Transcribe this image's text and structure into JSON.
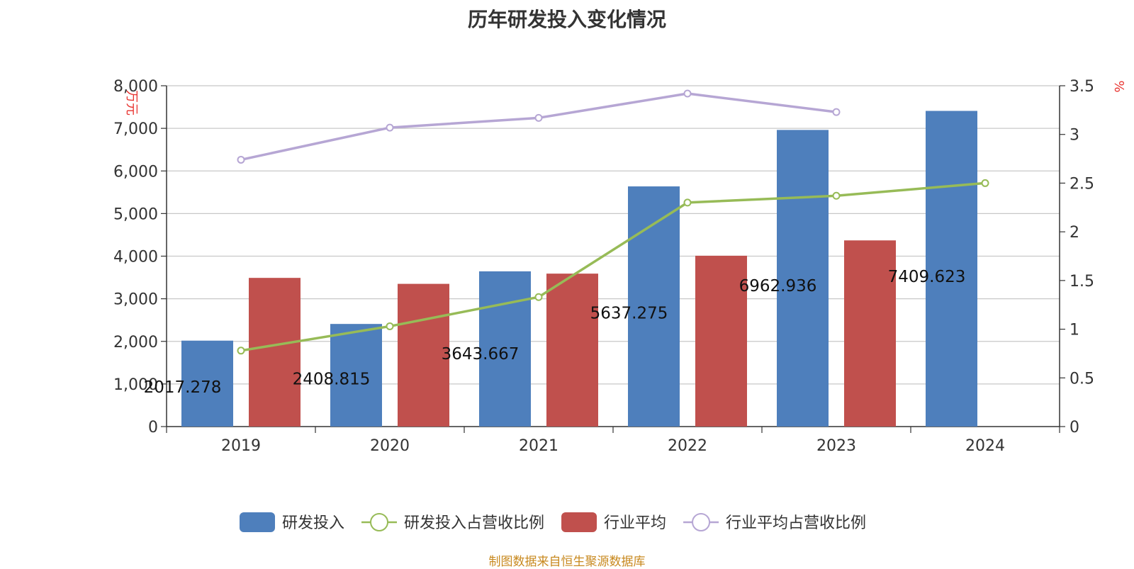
{
  "chart_data": {
    "type": "bar",
    "title": "历年研发投入变化情况",
    "categories": [
      "2019",
      "2020",
      "2021",
      "2022",
      "2023",
      "2024"
    ],
    "y_left": {
      "unit": "万元",
      "ylim": [
        0,
        8000
      ],
      "ticks": [
        0,
        1000,
        2000,
        3000,
        4000,
        5000,
        6000,
        7000,
        8000
      ],
      "tick_labels": [
        "0",
        "1,000",
        "2,000",
        "3,000",
        "4,000",
        "5,000",
        "6,000",
        "7,000",
        "8,000"
      ]
    },
    "y_right": {
      "unit": "%",
      "ylim": [
        0,
        3.5
      ],
      "ticks": [
        0,
        0.5,
        1,
        1.5,
        2,
        2.5,
        3,
        3.5
      ],
      "tick_labels": [
        "0",
        "0.5",
        "1",
        "1.5",
        "2",
        "2.5",
        "3",
        "3.5"
      ]
    },
    "series": [
      {
        "name": "研发投入",
        "kind": "bar",
        "axis": "left",
        "color": "#4e7fbc",
        "values": [
          2017.278,
          2408.815,
          3643.667,
          5637.275,
          6962.936,
          7409.623
        ],
        "data_labels": [
          "2017.278",
          "2408.815",
          "3643.667",
          "5637.275",
          "6962.936",
          "7409.623"
        ]
      },
      {
        "name": "研发投入占营收比例",
        "kind": "line",
        "axis": "right",
        "color": "#97bb57",
        "values": [
          0.78,
          1.03,
          1.33,
          2.3,
          2.37,
          2.5
        ]
      },
      {
        "name": "行业平均",
        "kind": "bar",
        "axis": "left",
        "color": "#c0504d",
        "values": [
          3490,
          3350,
          3590,
          4010,
          4370,
          null
        ]
      },
      {
        "name": "行业平均占营收比例",
        "kind": "line",
        "axis": "right",
        "color": "#b6a6d4",
        "values": [
          2.74,
          3.07,
          3.17,
          3.42,
          3.23,
          null
        ]
      }
    ],
    "grid": true,
    "legend_position": "bottom-center"
  },
  "source_note": "制图数据来自恒生聚源数据库"
}
